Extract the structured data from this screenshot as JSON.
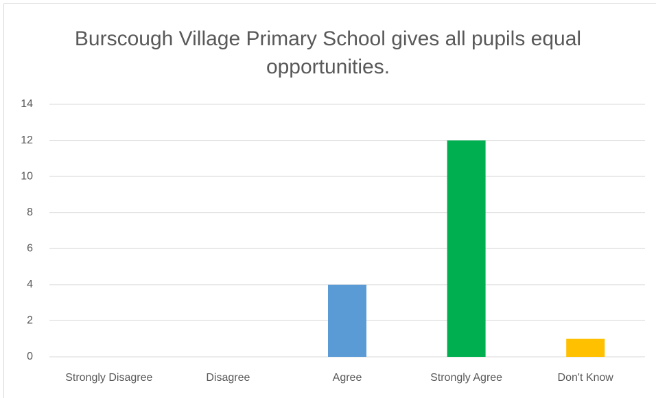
{
  "chart_data": {
    "type": "bar",
    "title": "Burscough Village Primary School gives all pupils equal opportunities.",
    "categories": [
      "Strongly Disagree",
      "Disagree",
      "Agree",
      "Strongly Agree",
      "Don't Know"
    ],
    "values": [
      0,
      0,
      4,
      12,
      1
    ],
    "colors": [
      null,
      null,
      "#5b9bd5",
      "#00b050",
      "#ffc000"
    ],
    "ylim": [
      0,
      14
    ],
    "yticks": [
      0,
      2,
      4,
      6,
      8,
      10,
      12,
      14
    ],
    "grid": true
  }
}
